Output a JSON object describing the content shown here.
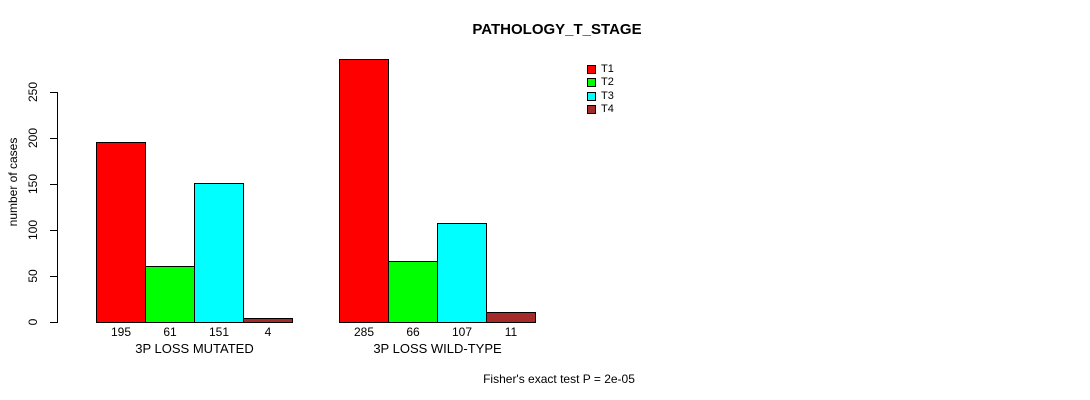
{
  "chart_data": {
    "type": "bar",
    "title": "PATHOLOGY_T_STAGE",
    "ylabel": "number of cases",
    "xlabel": "",
    "ylim": [
      0,
      250
    ],
    "yticks": [
      0,
      50,
      100,
      150,
      200,
      250
    ],
    "categories": [
      "3P LOSS MUTATED",
      "3P LOSS WILD-TYPE"
    ],
    "series": [
      {
        "name": "T1",
        "color": "#ff0000",
        "values": [
          195,
          285
        ]
      },
      {
        "name": "T2",
        "color": "#00ff00",
        "values": [
          61,
          66
        ]
      },
      {
        "name": "T3",
        "color": "#00ffff",
        "values": [
          151,
          107
        ]
      },
      {
        "name": "T4",
        "color": "#a52a2a",
        "values": [
          4,
          11
        ]
      }
    ],
    "bar_value_labels": [
      [
        195,
        61,
        151,
        4
      ],
      [
        285,
        66,
        107,
        11
      ]
    ],
    "legend_position": "top-right",
    "legend_entries": [
      "T1",
      "T2",
      "T3",
      "T4"
    ],
    "grid": false,
    "annotation": "Fisher's exact test P = 2e-05"
  }
}
